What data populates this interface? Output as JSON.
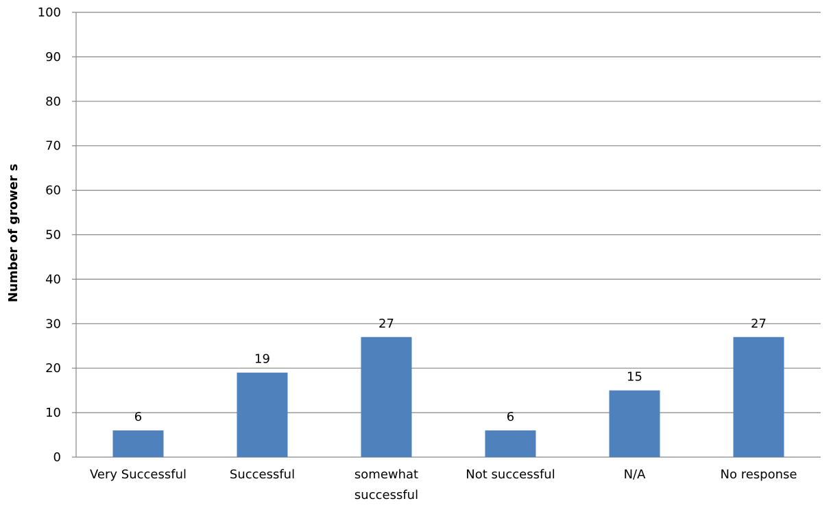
{
  "chart_data": {
    "type": "bar",
    "title": "",
    "xlabel": "",
    "ylabel": "Number of grower s",
    "categories": [
      "Very Successful",
      "Successful",
      "somewhat successful",
      "Not successful",
      "N/A",
      "No response"
    ],
    "values": [
      6,
      19,
      27,
      6,
      15,
      27
    ],
    "ylim": [
      0,
      100
    ],
    "yticks": [
      0,
      10,
      20,
      30,
      40,
      50,
      60,
      70,
      80,
      90,
      100
    ],
    "grid": true,
    "legend": "none",
    "data_labels": true,
    "bar_color": "#4F81BD",
    "grid_color": "#868686"
  }
}
